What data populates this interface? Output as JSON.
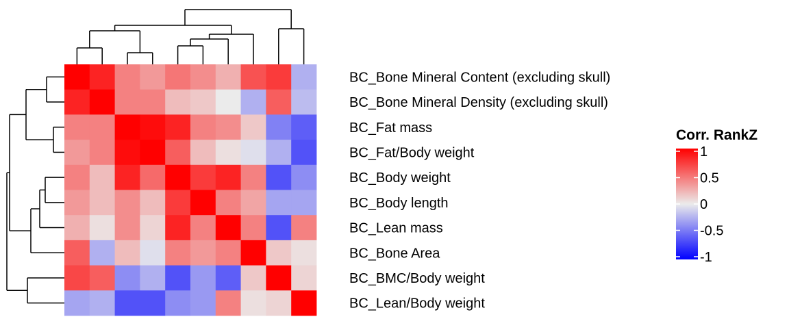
{
  "chart_data": {
    "type": "heatmap",
    "title": "",
    "legend_title": "Corr. RankZ",
    "legend_position": "right",
    "legend_ticks": [
      1,
      0.5,
      0,
      -0.5,
      -1
    ],
    "legend_tick_labels": [
      "1",
      "0.5",
      "0",
      "-0.5",
      "-1"
    ],
    "color_scale": {
      "low": "#0000ff",
      "mid": "#ebebeb",
      "high": "#ff0000",
      "limits": [
        -1,
        1
      ]
    },
    "row_dendrogram": true,
    "column_dendrogram": true,
    "row_labels": [
      "BC_Bone Mineral Content (excluding skull)",
      "BC_Bone Mineral Density (excluding skull)",
      "BC_Fat mass",
      "BC_Fat/Body weight",
      "BC_Body weight",
      "BC_Body length",
      "BC_Lean mass",
      "BC_Bone Area",
      "BC_BMC/Body weight",
      "BC_Lean/Body weight"
    ],
    "values": [
      [
        1.0,
        0.85,
        0.45,
        0.35,
        0.5,
        0.4,
        0.25,
        0.65,
        0.75,
        -0.25
      ],
      [
        0.85,
        1.0,
        0.45,
        0.45,
        0.2,
        0.15,
        0.0,
        -0.25,
        0.6,
        -0.2
      ],
      [
        0.45,
        0.45,
        1.0,
        0.95,
        0.85,
        0.45,
        0.4,
        0.15,
        -0.45,
        -0.6
      ],
      [
        0.35,
        0.45,
        0.95,
        1.0,
        0.6,
        0.2,
        0.05,
        -0.05,
        -0.25,
        -0.65
      ],
      [
        0.45,
        0.2,
        0.85,
        0.55,
        1.0,
        0.75,
        0.85,
        0.45,
        -0.65,
        -0.4
      ],
      [
        0.35,
        0.2,
        0.4,
        0.2,
        0.75,
        1.0,
        0.45,
        0.3,
        -0.3,
        -0.3
      ],
      [
        0.25,
        0.05,
        0.4,
        0.1,
        0.85,
        0.45,
        1.0,
        0.45,
        -0.65,
        0.45
      ],
      [
        0.6,
        -0.25,
        0.2,
        -0.05,
        0.45,
        0.35,
        0.45,
        1.0,
        0.15,
        0.05
      ],
      [
        0.7,
        0.6,
        -0.4,
        -0.25,
        -0.65,
        -0.35,
        -0.6,
        0.15,
        1.0,
        0.1
      ],
      [
        -0.3,
        -0.25,
        -0.65,
        -0.65,
        -0.4,
        -0.35,
        0.45,
        0.05,
        0.1,
        1.0
      ]
    ]
  }
}
